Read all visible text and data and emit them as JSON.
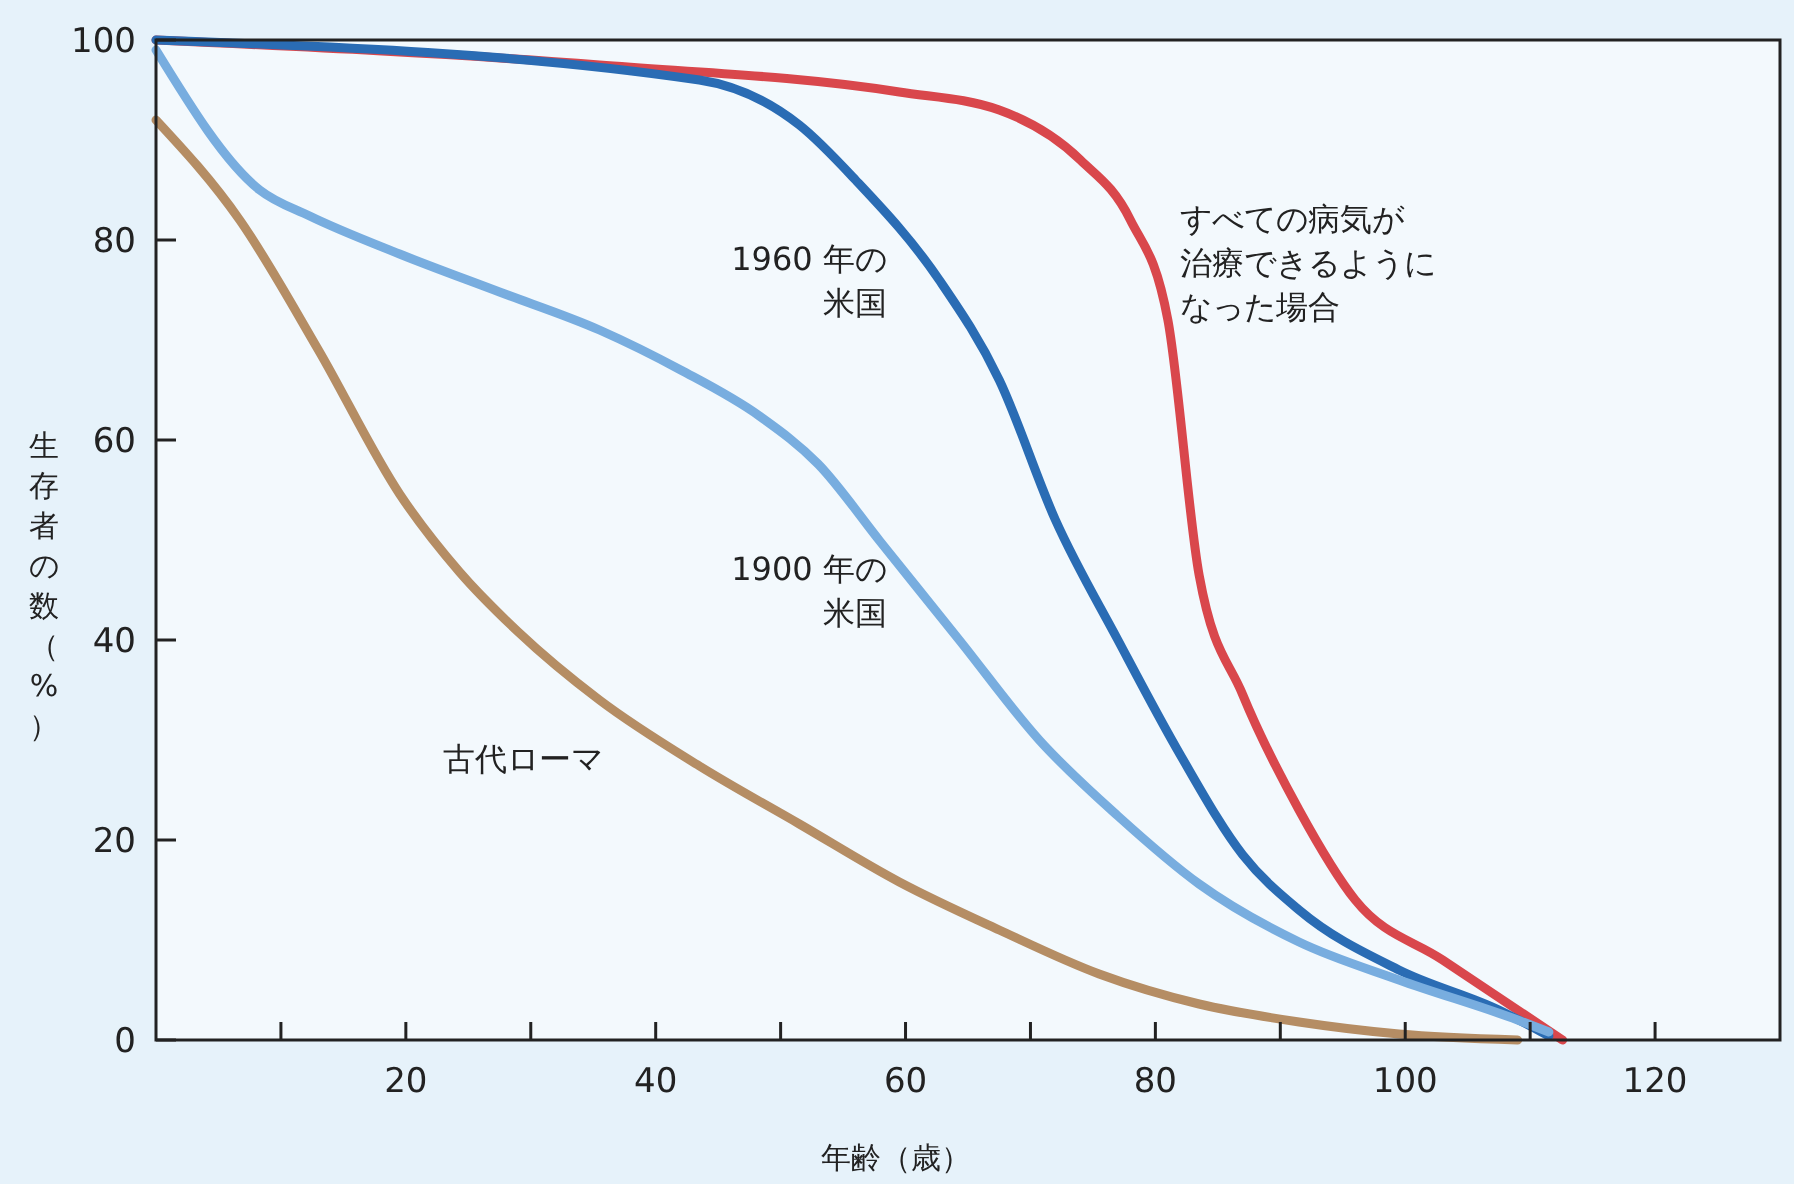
{
  "chart_data": {
    "type": "line",
    "xlabel": "年齢（歳）",
    "ylabel": "生存者の数（%）",
    "xlim": [
      0,
      130
    ],
    "ylim": [
      0,
      100
    ],
    "xticks": [
      {
        "value": 10,
        "label": null
      },
      20,
      {
        "value": 30,
        "label": null
      },
      40,
      {
        "value": 50,
        "label": null
      },
      60,
      {
        "value": 70,
        "label": null
      },
      80,
      {
        "value": 90,
        "label": null
      },
      100,
      {
        "value": 110,
        "label": null
      },
      120
    ],
    "yticks": [
      0,
      20,
      40,
      60,
      80,
      100
    ],
    "grid": false,
    "series": [
      {
        "name": "すべての病気が治療できるようになった場合",
        "color": "#d9474c",
        "x": [
          0,
          35.5,
          59.5,
          67.5,
          74,
          78,
          81,
          83.5,
          87,
          91.5,
          96,
          103,
          112.6
        ],
        "values": [
          100,
          97.5,
          94.8,
          93,
          88,
          82,
          72,
          46.5,
          34.5,
          23,
          14,
          8,
          0
        ]
      },
      {
        "name": "1960 年の米国",
        "color": "#2a6cb4",
        "x": [
          0,
          43.5,
          51.5,
          56,
          62.7,
          67.5,
          72,
          77,
          82,
          87,
          91.5,
          99.5,
          107.5,
          111.5
        ],
        "values": [
          100,
          96,
          91.5,
          86,
          76,
          66,
          52,
          40,
          28.5,
          18.5,
          13,
          7,
          3,
          0.4
        ]
      },
      {
        "name": "1900 年の米国",
        "color": "#78addf",
        "x": [
          0,
          8.3,
          12.3,
          19.5,
          27.5,
          35.5,
          42,
          48.3,
          53,
          58,
          64.3,
          70.7,
          77,
          83.5,
          91.5,
          99.5,
          109,
          111.5
        ],
        "values": [
          99,
          85,
          82.4,
          78.6,
          74.8,
          71,
          67,
          62.4,
          57.6,
          49.8,
          40,
          30,
          22.4,
          15.6,
          9.8,
          6,
          2,
          0.8
        ]
      },
      {
        "name": "古代ローマ",
        "color": "#b58d64",
        "x": [
          0,
          6.7,
          13,
          19.5,
          24.3,
          29,
          35.5,
          43.5,
          51.5,
          59.5,
          67.5,
          75.5,
          83.5,
          91.5,
          99.5,
          109
        ],
        "values": [
          92,
          82,
          69,
          54.6,
          46.8,
          40.8,
          34,
          27.4,
          21.6,
          15.8,
          11,
          6.6,
          3.6,
          1.8,
          0.6,
          0
        ]
      }
    ]
  }
}
